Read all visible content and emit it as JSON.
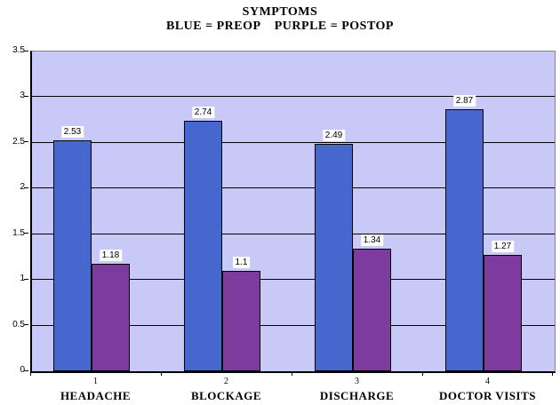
{
  "chart_data": {
    "type": "bar",
    "title": "SYMPTOMS",
    "subtitle": "BLUE = PREOP    PURPLE = POSTOP",
    "categories": [
      "1",
      "2",
      "3",
      "4"
    ],
    "category_labels": [
      "HEADACHE",
      "BLOCKAGE",
      "DISCHARGE",
      "DOCTOR VISITS"
    ],
    "series": [
      {
        "name": "PREOP",
        "color": "#4667CE",
        "values": [
          2.53,
          2.74,
          2.49,
          2.87
        ],
        "data_labels": [
          "2.53",
          "2.74",
          "2.49",
          "2.87"
        ]
      },
      {
        "name": "POSTOP",
        "color": "#7D3B9E",
        "values": [
          1.18,
          1.1,
          1.34,
          1.27
        ],
        "data_labels": [
          "1.18",
          "1.1",
          "1.34",
          "1.27"
        ]
      }
    ],
    "ylim": [
      0,
      3.5
    ],
    "ytick_step": 0.5,
    "ytick_labels": [
      "0",
      "0.5",
      "1",
      "1.5",
      "2",
      "2.5",
      "3",
      "3.5"
    ],
    "grid": true,
    "legend_position": "none",
    "data_labels_shown": true,
    "colors": {
      "plot_background": "#C9C9F8",
      "gridline": "#000000",
      "axis": "#000000",
      "plot_border": "#848484",
      "data_label_background": "#FFFFFF",
      "page_background": "#FFFFFF",
      "text": "#000000"
    }
  }
}
